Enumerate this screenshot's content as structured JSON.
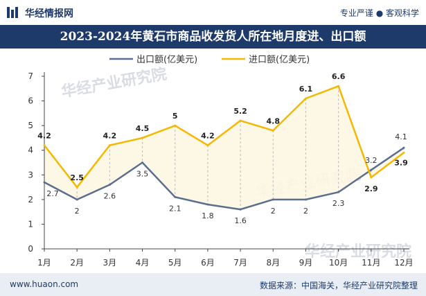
{
  "header": {
    "brand": "华经情报网",
    "tagline": "专业严谨 ● 客观科学"
  },
  "title": "2023-2024年黄石市商品收发货人所在地月度进、出口额",
  "footer": {
    "website": "www.huaon.com",
    "source": "数据来源：中国海关，华经产业研究院整理"
  },
  "watermark": "华经产业研究院",
  "colors": {
    "export": "#5b6e8f",
    "import": "#f5b800",
    "brand": "#1d3a6b"
  },
  "chart_data": {
    "type": "line",
    "categories": [
      "1月",
      "2月",
      "3月",
      "4月",
      "5月",
      "6月",
      "7月",
      "8月",
      "9月",
      "10月",
      "11月",
      "12月"
    ],
    "series": [
      {
        "name": "出口额(亿美元)",
        "values": [
          2.7,
          2,
          2.6,
          3.5,
          2.1,
          1.8,
          1.6,
          2,
          2,
          2.3,
          3.2,
          4.1
        ]
      },
      {
        "name": "进口额(亿美元)",
        "values": [
          4.2,
          2.5,
          4.2,
          4.5,
          5,
          4.2,
          5.2,
          4.8,
          6.1,
          6.6,
          2.9,
          3.9
        ]
      }
    ],
    "ylim": [
      0,
      7
    ],
    "yticks": [
      0,
      1,
      2,
      3,
      4,
      5,
      6,
      7
    ],
    "legend": "top-center"
  }
}
